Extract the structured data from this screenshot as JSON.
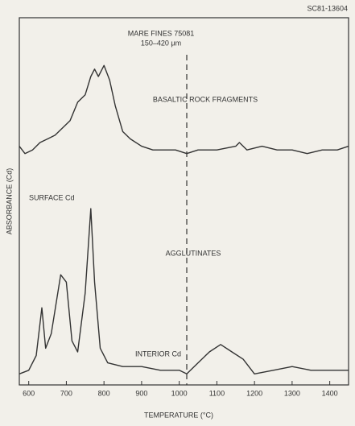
{
  "chart_data": {
    "type": "line",
    "code": "SC81-13604",
    "title": "MARE FINES 75081",
    "subtitle": "150–420 μm",
    "x_label": "TEMPERATURE (°C)",
    "y_label": "ABSORBANCE (Cd)",
    "annotations": [
      "BASALTIC ROCK FRAGMENTS",
      "AGGLUTINATES",
      "SURFACE Cd",
      "INTERIOR Cd"
    ],
    "vline": 1020,
    "xlim": [
      575,
      1450
    ],
    "xticks": [
      600,
      700,
      800,
      900,
      1000,
      1100,
      1200,
      1300,
      1400
    ],
    "ylim": [
      0,
      100
    ],
    "series": [
      {
        "color": "#333333",
        "x": [
          575,
          590,
          610,
          630,
          650,
          670,
          690,
          710,
          730,
          750,
          765,
          775,
          785,
          800,
          815,
          830,
          850,
          870,
          900,
          930,
          960,
          990,
          1020,
          1050,
          1100,
          1150,
          1160,
          1180,
          1220,
          1260,
          1300,
          1340,
          1380,
          1420,
          1450
        ],
        "values": [
          65,
          63,
          64,
          66,
          67,
          68,
          70,
          72,
          77,
          79,
          84,
          86,
          84,
          87,
          83,
          76,
          69,
          67,
          65,
          64,
          64,
          64,
          63,
          64,
          64,
          65,
          66,
          64,
          65,
          64,
          64,
          63,
          64,
          64,
          65
        ]
      },
      {
        "color": "#333333",
        "x": [
          575,
          600,
          620,
          635,
          645,
          660,
          685,
          700,
          715,
          730,
          750,
          765,
          775,
          790,
          810,
          850,
          900,
          950,
          1000,
          1020,
          1050,
          1080,
          1110,
          1140,
          1170,
          1200,
          1250,
          1300,
          1350,
          1400,
          1450
        ],
        "values": [
          3,
          4,
          8,
          21,
          10,
          14,
          30,
          28,
          12,
          9,
          25,
          48,
          28,
          10,
          6,
          5,
          5,
          4,
          4,
          3,
          6,
          9,
          11,
          9,
          7,
          3,
          4,
          5,
          4,
          4,
          4
        ]
      }
    ]
  }
}
